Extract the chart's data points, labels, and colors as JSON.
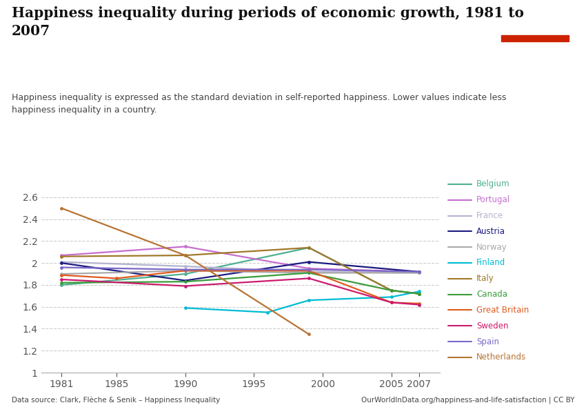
{
  "title": "Happiness inequality during periods of economic growth, 1981 to\n2007",
  "subtitle": "Happiness inequality is expressed as the standard deviation in self-reported happiness. Lower values indicate less\nhappiness inequality in a country.",
  "datasource": "Data source: Clark, Flèche & Senik – Happiness Inequality",
  "url": "OurWorldInData.org/happiness-and-life-satisfaction | CC BY",
  "ylim": [
    1.0,
    2.7
  ],
  "yticks": [
    1.0,
    1.2,
    1.4,
    1.6,
    1.8,
    2.0,
    2.2,
    2.4,
    2.6
  ],
  "ytick_labels": [
    "1",
    "1.2",
    "1.4",
    "1.6",
    "1.8",
    "2",
    "2.2",
    "2.4",
    "2.6"
  ],
  "xticks": [
    1981,
    1985,
    1990,
    1995,
    2000,
    2005,
    2007
  ],
  "countries": {
    "Belgium": {
      "color": "#4daf91",
      "data": {
        "1981": 1.8,
        "1990": 1.9,
        "1999": 2.14,
        "2005": 1.75,
        "2007": 1.72
      }
    },
    "Portugal": {
      "color": "#c56ecf",
      "data": {
        "1981": 2.07,
        "1990": 2.15,
        "1999": 1.95,
        "2007": 1.92
      }
    },
    "France": {
      "color": "#b3b3cc",
      "data": {
        "1981": 2.01,
        "1990": 1.97,
        "1999": 1.92,
        "2007": 1.91
      }
    },
    "Austria": {
      "color": "#1a1a80",
      "data": {
        "1981": 2.0,
        "1990": 1.84,
        "1999": 2.01,
        "2007": 1.92
      }
    },
    "Norway": {
      "color": "#aaaaaa",
      "data": {
        "1981": 1.9,
        "1990": 1.93,
        "1999": 1.91,
        "2007": 1.91
      }
    },
    "Finland": {
      "color": "#00bcd4",
      "data": {
        "1990": 1.59,
        "1996": 1.55,
        "1999": 1.66,
        "2005": 1.69,
        "2007": 1.74
      }
    },
    "Italy": {
      "color": "#a07828",
      "data": {
        "1981": 2.06,
        "1990": 2.07,
        "1999": 2.14,
        "2005": 1.75,
        "2007": 1.72
      }
    },
    "Canada": {
      "color": "#3a9c3a",
      "data": {
        "1981": 1.82,
        "1990": 1.83,
        "1999": 1.91,
        "2005": 1.75,
        "2007": 1.72
      }
    },
    "Great Britain": {
      "color": "#e05a1e",
      "data": {
        "1981": 1.89,
        "1985": 1.86,
        "1990": 1.93,
        "1999": 1.93,
        "2005": 1.64,
        "2007": 1.63
      }
    },
    "Sweden": {
      "color": "#cc1a6e",
      "data": {
        "1981": 1.85,
        "1990": 1.79,
        "1999": 1.86,
        "2005": 1.64,
        "2007": 1.62
      }
    },
    "Spain": {
      "color": "#7b68c8",
      "data": {
        "1981": 1.96,
        "1990": 1.94,
        "1999": 1.94,
        "2007": 1.92
      }
    },
    "Netherlands": {
      "color": "#b87333",
      "data": {
        "1981": 2.5,
        "1990": 2.07,
        "1999": 1.35
      }
    }
  },
  "legend_order": [
    "Belgium",
    "Portugal",
    "France",
    "Austria",
    "Norway",
    "Finland",
    "Italy",
    "Canada",
    "Great Britain",
    "Sweden",
    "Spain",
    "Netherlands"
  ],
  "bg_color": "#ffffff",
  "grid_color": "#aaaaaa",
  "owid_box_color": "#1a3a5c",
  "owid_red": "#cc2200"
}
